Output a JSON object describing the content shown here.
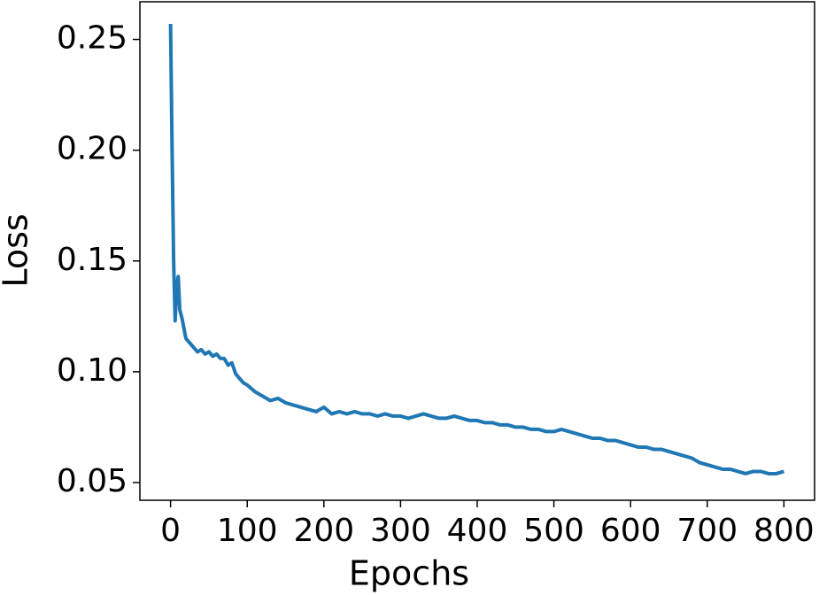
{
  "chart_data": {
    "type": "line",
    "xlabel": "Epochs",
    "ylabel": "Loss",
    "color": "#1f77b4",
    "x": [
      0,
      2,
      4,
      6,
      8,
      10,
      12,
      15,
      20,
      25,
      30,
      35,
      40,
      45,
      50,
      55,
      60,
      65,
      70,
      75,
      80,
      85,
      90,
      95,
      100,
      110,
      120,
      130,
      140,
      150,
      160,
      170,
      180,
      190,
      200,
      210,
      220,
      230,
      240,
      250,
      260,
      270,
      280,
      290,
      300,
      310,
      320,
      330,
      340,
      350,
      360,
      370,
      380,
      390,
      400,
      410,
      420,
      430,
      440,
      450,
      460,
      470,
      480,
      490,
      500,
      510,
      520,
      530,
      540,
      550,
      560,
      570,
      580,
      590,
      600,
      610,
      620,
      630,
      640,
      650,
      660,
      670,
      680,
      690,
      700,
      710,
      720,
      730,
      740,
      750,
      760,
      770,
      780,
      790,
      800
    ],
    "values": [
      0.257,
      0.2,
      0.15,
      0.123,
      0.138,
      0.143,
      0.128,
      0.124,
      0.115,
      0.113,
      0.111,
      0.109,
      0.11,
      0.108,
      0.109,
      0.107,
      0.108,
      0.106,
      0.106,
      0.103,
      0.104,
      0.099,
      0.097,
      0.095,
      0.094,
      0.091,
      0.089,
      0.087,
      0.088,
      0.086,
      0.085,
      0.084,
      0.083,
      0.082,
      0.084,
      0.081,
      0.082,
      0.081,
      0.082,
      0.081,
      0.081,
      0.08,
      0.081,
      0.08,
      0.08,
      0.079,
      0.08,
      0.081,
      0.08,
      0.079,
      0.079,
      0.08,
      0.079,
      0.078,
      0.078,
      0.077,
      0.077,
      0.076,
      0.076,
      0.075,
      0.075,
      0.074,
      0.074,
      0.073,
      0.073,
      0.074,
      0.073,
      0.072,
      0.071,
      0.07,
      0.07,
      0.069,
      0.069,
      0.068,
      0.067,
      0.066,
      0.066,
      0.065,
      0.065,
      0.064,
      0.063,
      0.062,
      0.061,
      0.059,
      0.058,
      0.057,
      0.056,
      0.056,
      0.055,
      0.054,
      0.055,
      0.055,
      0.054,
      0.054,
      0.055
    ],
    "xlim": [
      -40,
      840
    ],
    "ylim": [
      0.042,
      0.267
    ],
    "xticks": [
      0,
      100,
      200,
      300,
      400,
      500,
      600,
      700,
      800
    ],
    "yticks": [
      0.05,
      {
        "value": 0.1,
        "label": "0.10"
      },
      0.15,
      {
        "value": 0.2,
        "label": "0.20"
      },
      0.25
    ]
  }
}
